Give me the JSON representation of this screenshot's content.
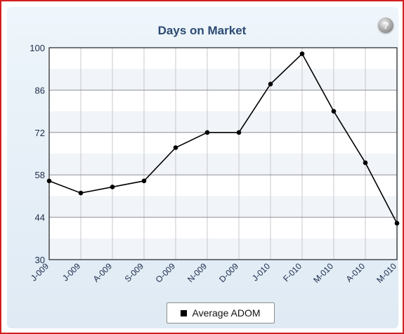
{
  "help": {
    "symbol": "?",
    "icon": "help-circle-icon"
  },
  "colors": {
    "border": "#d21f1f",
    "line": "#000000",
    "title": "#2b4a72",
    "grid": "#c9c9cf"
  },
  "chart_data": {
    "type": "line",
    "title": "Days on Market",
    "xlabel": "",
    "ylabel": "",
    "categories": [
      "J-009",
      "J-009",
      "A-009",
      "S-009",
      "O-009",
      "N-009",
      "D-009",
      "J-010",
      "F-010",
      "M-010",
      "A-010",
      "M-010"
    ],
    "series": [
      {
        "name": "Average ADOM",
        "values": [
          56,
          52,
          54,
          56,
          67,
          72,
          72,
          88,
          98,
          79,
          62,
          42
        ]
      }
    ],
    "yticks": [
      30,
      44,
      58,
      72,
      86,
      100
    ],
    "ylim": [
      30,
      100
    ],
    "grid": true,
    "legend": "bottom-center"
  }
}
